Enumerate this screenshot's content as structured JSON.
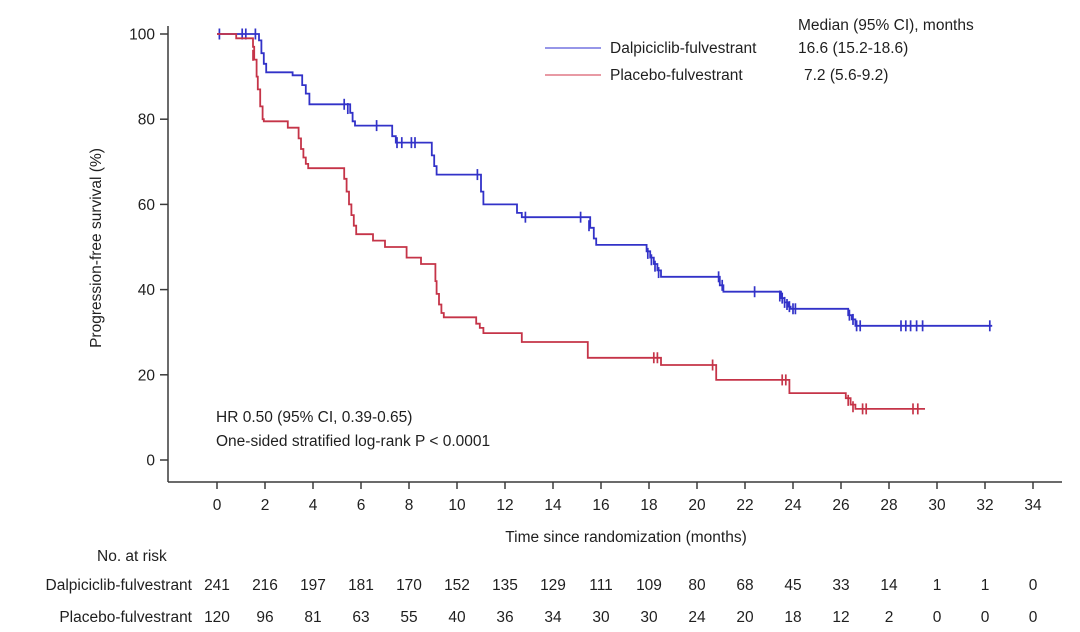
{
  "figure": {
    "y_axis_label": "Progression-free survival (%)",
    "x_axis_label": "Time since randomization (months)",
    "annotation": {
      "line1": "HR 0.50 (95% CI, 0.39-0.65)",
      "line2": "One-sided stratified log-rank P < 0.0001"
    },
    "legend": {
      "header": "Median (95% CI), months",
      "entries": [
        {
          "label": "Dalpiciclib-fulvestrant",
          "median": "16.6 (15.2-18.6)",
          "swatch_color": "#9696E8"
        },
        {
          "label": "Placebo-fulvestrant",
          "median": "7.2 (5.6-9.2)",
          "swatch_color": "#E89AA4"
        }
      ]
    }
  },
  "chart_data": {
    "type": "line",
    "subtype": "kaplan-meier-step",
    "title": "",
    "xlabel": "Time since randomization (months)",
    "ylabel": "Progression-free survival (%)",
    "xlim": [
      0,
      34
    ],
    "ylim": [
      0,
      100
    ],
    "x_ticks": [
      0,
      2,
      4,
      6,
      8,
      10,
      12,
      14,
      16,
      18,
      20,
      22,
      24,
      26,
      28,
      30,
      32,
      34
    ],
    "y_ticks": [
      0,
      20,
      40,
      60,
      80,
      100
    ],
    "grid": false,
    "legend_position": "top-right",
    "axis_color": "#3a3a3a",
    "series": [
      {
        "id": "dalpiciclib",
        "name": "Dalpiciclib-fulvestrant",
        "color": "#3232C8",
        "median_months": "16.6 (15.2-18.6)",
        "start": [
          0,
          100
        ],
        "end_month": 32.3,
        "steps": [
          [
            1.75,
            98.5
          ],
          [
            1.85,
            95.5
          ],
          [
            1.95,
            93
          ],
          [
            2.05,
            91
          ],
          [
            3.15,
            90.3
          ],
          [
            3.55,
            88
          ],
          [
            3.7,
            86
          ],
          [
            3.85,
            83.5
          ],
          [
            5.55,
            81.5
          ],
          [
            5.65,
            79.5
          ],
          [
            5.75,
            78.5
          ],
          [
            7.3,
            76
          ],
          [
            7.45,
            74.5
          ],
          [
            8.95,
            71.5
          ],
          [
            9.05,
            69
          ],
          [
            9.15,
            67
          ],
          [
            11.0,
            63
          ],
          [
            11.1,
            60
          ],
          [
            12.5,
            58
          ],
          [
            12.7,
            57
          ],
          [
            15.55,
            54.5
          ],
          [
            15.7,
            52
          ],
          [
            15.8,
            50.5
          ],
          [
            17.9,
            49
          ],
          [
            18.05,
            47.5
          ],
          [
            18.2,
            46
          ],
          [
            18.35,
            44.5
          ],
          [
            18.5,
            43
          ],
          [
            20.95,
            41
          ],
          [
            21.1,
            39.5
          ],
          [
            23.5,
            38
          ],
          [
            23.65,
            37
          ],
          [
            23.8,
            36
          ],
          [
            23.9,
            35.5
          ],
          [
            26.3,
            34
          ],
          [
            26.45,
            33
          ],
          [
            26.6,
            31.5
          ]
        ],
        "censors": [
          [
            0.1,
            100
          ],
          [
            1.05,
            100
          ],
          [
            1.2,
            100
          ],
          [
            1.6,
            100
          ],
          [
            5.3,
            83.5
          ],
          [
            5.45,
            82.5
          ],
          [
            6.65,
            78.5
          ],
          [
            7.5,
            74.5
          ],
          [
            7.7,
            74.5
          ],
          [
            8.1,
            74.5
          ],
          [
            8.25,
            74.5
          ],
          [
            10.85,
            67
          ],
          [
            12.85,
            57
          ],
          [
            15.15,
            57
          ],
          [
            15.5,
            55
          ],
          [
            17.95,
            48.5
          ],
          [
            18.1,
            47
          ],
          [
            18.25,
            45.5
          ],
          [
            18.4,
            44
          ],
          [
            20.9,
            43
          ],
          [
            21.05,
            41
          ],
          [
            22.4,
            39.5
          ],
          [
            23.45,
            38.5
          ],
          [
            23.55,
            38
          ],
          [
            23.65,
            37
          ],
          [
            23.75,
            36.5
          ],
          [
            23.85,
            36
          ],
          [
            24.0,
            35.5
          ],
          [
            24.1,
            35.5
          ],
          [
            26.35,
            34
          ],
          [
            26.5,
            33
          ],
          [
            26.65,
            31.5
          ],
          [
            26.8,
            31.5
          ],
          [
            28.5,
            31.5
          ],
          [
            28.7,
            31.5
          ],
          [
            28.9,
            31.5
          ],
          [
            29.15,
            31.5
          ],
          [
            29.4,
            31.5
          ],
          [
            32.2,
            31.5
          ]
        ]
      },
      {
        "id": "placebo",
        "name": "Placebo-fulvestrant",
        "color": "#C53448",
        "median_months": "7.2 (5.6-9.2)",
        "start": [
          0,
          100
        ],
        "end_month": 29.5,
        "steps": [
          [
            0.8,
            99
          ],
          [
            1.5,
            97
          ],
          [
            1.55,
            94
          ],
          [
            1.65,
            90
          ],
          [
            1.7,
            87
          ],
          [
            1.8,
            83
          ],
          [
            1.9,
            80
          ],
          [
            1.95,
            79.5
          ],
          [
            2.95,
            78
          ],
          [
            3.4,
            75.5
          ],
          [
            3.5,
            73
          ],
          [
            3.6,
            71
          ],
          [
            3.7,
            69.5
          ],
          [
            3.8,
            68.5
          ],
          [
            5.3,
            66
          ],
          [
            5.4,
            63
          ],
          [
            5.5,
            60
          ],
          [
            5.6,
            57.5
          ],
          [
            5.7,
            55
          ],
          [
            5.8,
            53
          ],
          [
            6.5,
            51.5
          ],
          [
            7.0,
            50
          ],
          [
            7.9,
            47.5
          ],
          [
            8.5,
            46
          ],
          [
            9.1,
            42
          ],
          [
            9.15,
            39
          ],
          [
            9.25,
            36.5
          ],
          [
            9.35,
            34.5
          ],
          [
            9.45,
            33.5
          ],
          [
            10.8,
            32
          ],
          [
            10.95,
            31
          ],
          [
            11.1,
            29.8
          ],
          [
            12.7,
            27.7
          ],
          [
            15.45,
            24
          ],
          [
            18.5,
            22.3
          ],
          [
            20.8,
            18.8
          ],
          [
            23.85,
            15.7
          ],
          [
            26.2,
            14.5
          ],
          [
            26.4,
            13
          ],
          [
            26.6,
            12
          ]
        ],
        "censors": [
          [
            1.5,
            95
          ],
          [
            18.2,
            24
          ],
          [
            18.35,
            24
          ],
          [
            20.65,
            22.3
          ],
          [
            23.55,
            18.8
          ],
          [
            23.7,
            18.8
          ],
          [
            26.3,
            14
          ],
          [
            26.5,
            12.5
          ],
          [
            26.9,
            12
          ],
          [
            27.05,
            12
          ],
          [
            29.0,
            12
          ],
          [
            29.2,
            12
          ]
        ]
      }
    ]
  },
  "risk_table": {
    "header": "No. at risk",
    "time_points": [
      0,
      2,
      4,
      6,
      8,
      10,
      12,
      14,
      16,
      18,
      20,
      22,
      24,
      26,
      28,
      30,
      32,
      34
    ],
    "rows": [
      {
        "label": "Dalpiciclib-fulvestrant",
        "counts": [
          241,
          216,
          197,
          181,
          170,
          152,
          135,
          129,
          111,
          109,
          80,
          68,
          45,
          33,
          14,
          1,
          1,
          0
        ]
      },
      {
        "label": "Placebo-fulvestrant",
        "counts": [
          120,
          96,
          81,
          63,
          55,
          40,
          36,
          34,
          30,
          30,
          24,
          20,
          18,
          12,
          2,
          0,
          0,
          0
        ]
      }
    ]
  }
}
